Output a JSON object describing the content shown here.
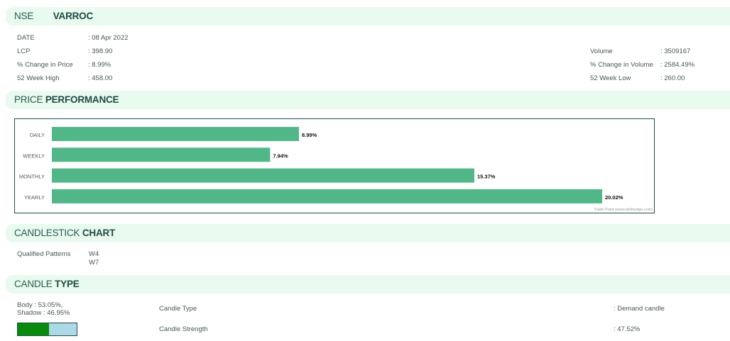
{
  "header": {
    "exchange": "NSE",
    "symbol": "VARROC"
  },
  "info_left": [
    {
      "label": "DATE",
      "value": ": 08 Apr 2022"
    },
    {
      "label": "LCP",
      "value": ": 398.90"
    },
    {
      "label": "% Change in Price",
      "value": ": 8.99%"
    },
    {
      "label": "52 Week High",
      "value": ": 458.00"
    }
  ],
  "info_right": [
    {
      "label": "Volume",
      "value": ": 3509167"
    },
    {
      "label": "% Change in Volume",
      "value": ": 2584.49%"
    },
    {
      "label": "52 Week Low",
      "value": ": 260.00"
    }
  ],
  "sections": {
    "price": {
      "normal": "PRICE ",
      "bold": "PERFORMANCE"
    },
    "candlestick": {
      "normal": "CANDLESTICK ",
      "bold": "CHART"
    },
    "candle_type": {
      "normal": "CANDLE ",
      "bold": "TYPE"
    }
  },
  "chart_data": {
    "type": "bar",
    "orientation": "horizontal",
    "categories": [
      "DAILY",
      "WEEKLY",
      "MONTHLY",
      "YEARLY"
    ],
    "values": [
      8.99,
      7.94,
      15.37,
      20.02
    ],
    "value_labels": [
      "8.99%",
      "7.94%",
      "15.37%",
      "20.02%"
    ],
    "bar_color": "#52b788",
    "credit": "Trade Point (www.definedge.com)"
  },
  "candlestick": {
    "label": "Qualified Patterns",
    "patterns": [
      "W4",
      "W7"
    ]
  },
  "candle_type": {
    "body": "Body : 53.05%,",
    "shadow": "Shadow : 46.95%",
    "body_fraction": 0.5305,
    "type_label": "Candle Type",
    "type_value": ": Demand candle",
    "strength_label": "Candle Strength",
    "strength_value": ": 47.52%"
  }
}
